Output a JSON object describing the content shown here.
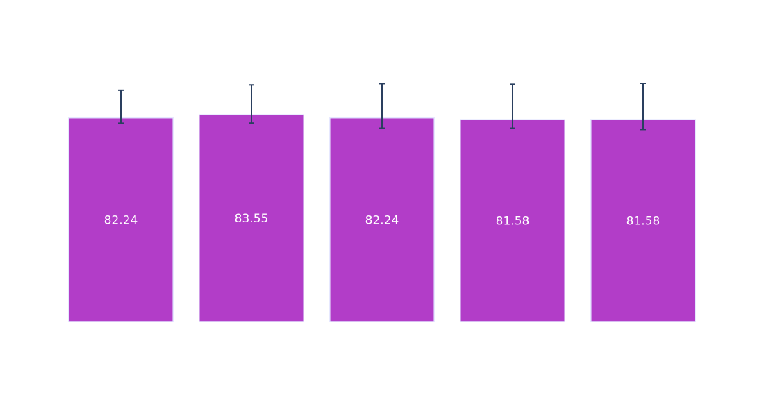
{
  "chart_data": {
    "type": "bar",
    "title": "",
    "xlabel": "",
    "ylabel": "",
    "categories": [],
    "values": [
      82.24,
      83.55,
      82.24,
      81.58,
      81.58
    ],
    "labels": [
      "82.24",
      "83.55",
      "82.24",
      "81.58",
      "81.58"
    ],
    "error_low": [
      80.08,
      80.14,
      78.08,
      78.08,
      77.55
    ],
    "error_high": [
      93.42,
      95.53,
      96.05,
      95.79,
      96.18
    ],
    "ylim": [
      0,
      113
    ],
    "grid": false,
    "legend": "none",
    "colors": {
      "bar": "#b23dc8",
      "bar_edge": "#e5e7ff",
      "error": "#2a3f5f",
      "label": "#ffffff"
    }
  }
}
